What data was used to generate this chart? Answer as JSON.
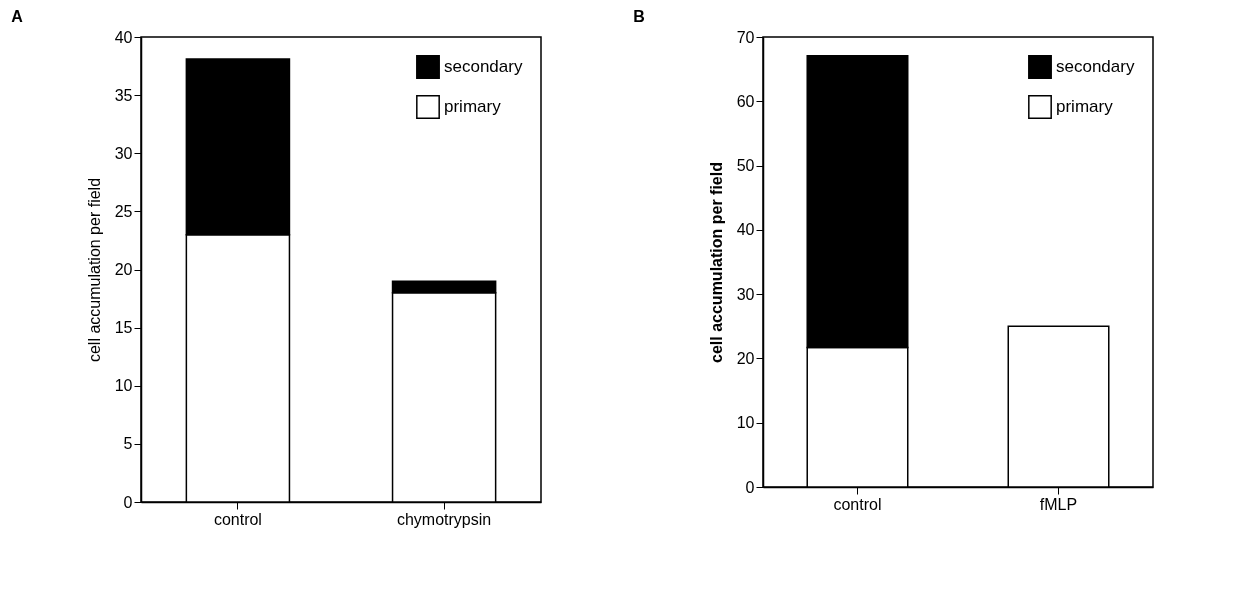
{
  "chart_data": [
    {
      "type": "bar",
      "title": "A",
      "ylabel": "cell accumulation per field",
      "categories": [
        "control",
        "chymotrypsin"
      ],
      "stacked": true,
      "legend": "top right",
      "ylim": [
        0,
        40
      ],
      "yticks": [
        0,
        5,
        10,
        15,
        20,
        25,
        30,
        35,
        40
      ],
      "series": [
        {
          "name": "primary",
          "color": "#ffffff",
          "values": [
            23,
            18
          ]
        },
        {
          "name": "secondary",
          "color": "#000000",
          "values": [
            15.1,
            1
          ]
        }
      ]
    },
    {
      "type": "bar",
      "title": "B",
      "ylabel": "cell accumulation per field",
      "categories": [
        "control",
        "fMLP"
      ],
      "stacked": true,
      "legend": "top right",
      "ylim": [
        0,
        70
      ],
      "yticks": [
        0,
        10,
        20,
        30,
        40,
        50,
        60,
        70
      ],
      "series": [
        {
          "name": "primary",
          "color": "#ffffff",
          "values": [
            21.7,
            25
          ]
        },
        {
          "name": "secondary",
          "color": "#000000",
          "values": [
            45.4,
            null
          ]
        }
      ]
    }
  ]
}
